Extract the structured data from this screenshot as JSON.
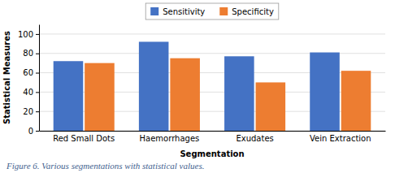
{
  "chart_data": {
    "type": "bar",
    "categories": [
      "Red Small Dots",
      "Haemorrhages",
      "Exudates",
      "Vein Extraction"
    ],
    "series": [
      {
        "name": "Sensitivity",
        "color": "#4472C4",
        "values": [
          72,
          92,
          77,
          81
        ]
      },
      {
        "name": "Specificity",
        "color": "#ED7D31",
        "values": [
          70,
          75,
          50,
          62
        ]
      }
    ],
    "xlabel": "Segmentation",
    "ylabel": "Statistical Measures",
    "caption": "Figure 6. Various segmentations with statistical values.",
    "ylim": [
      0,
      110
    ],
    "yticks": [
      0,
      20,
      40,
      60,
      80,
      100
    ],
    "grid": true,
    "legend": "top"
  }
}
